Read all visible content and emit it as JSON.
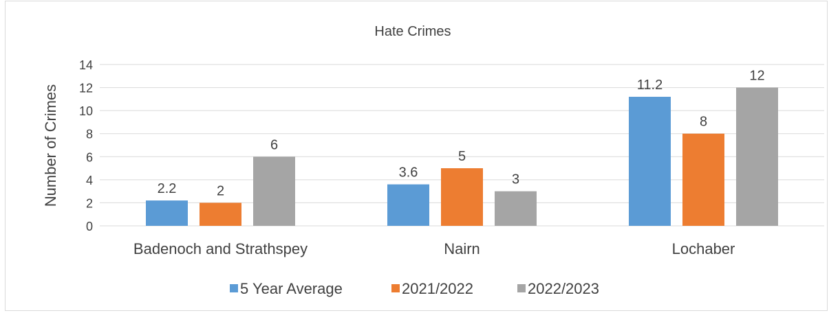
{
  "chart_data": {
    "type": "bar",
    "title": "Hate Crimes",
    "xlabel": "",
    "ylabel": "Number of Crimes",
    "categories": [
      "Badenoch and Strathspey",
      "Nairn",
      "Lochaber"
    ],
    "series": [
      {
        "name": "5 Year Average",
        "values": [
          2.2,
          3.6,
          11.2
        ],
        "color": "#5b9bd5"
      },
      {
        "name": "2021/2022",
        "values": [
          2,
          5,
          8
        ],
        "color": "#ed7d31"
      },
      {
        "name": "2022/2023",
        "values": [
          6,
          3,
          12
        ],
        "color": "#a5a5a5"
      }
    ],
    "data_labels": [
      [
        "2.2",
        "3.6",
        "11.2"
      ],
      [
        "2",
        "5",
        "8"
      ],
      [
        "6",
        "3",
        "12"
      ]
    ],
    "ylim": [
      0,
      14
    ],
    "yticks": [
      0,
      2,
      4,
      6,
      8,
      10,
      12,
      14
    ],
    "grid": true,
    "legend_position": "bottom",
    "gridline_color": "#d9d9d9",
    "text_color": "#404040"
  }
}
